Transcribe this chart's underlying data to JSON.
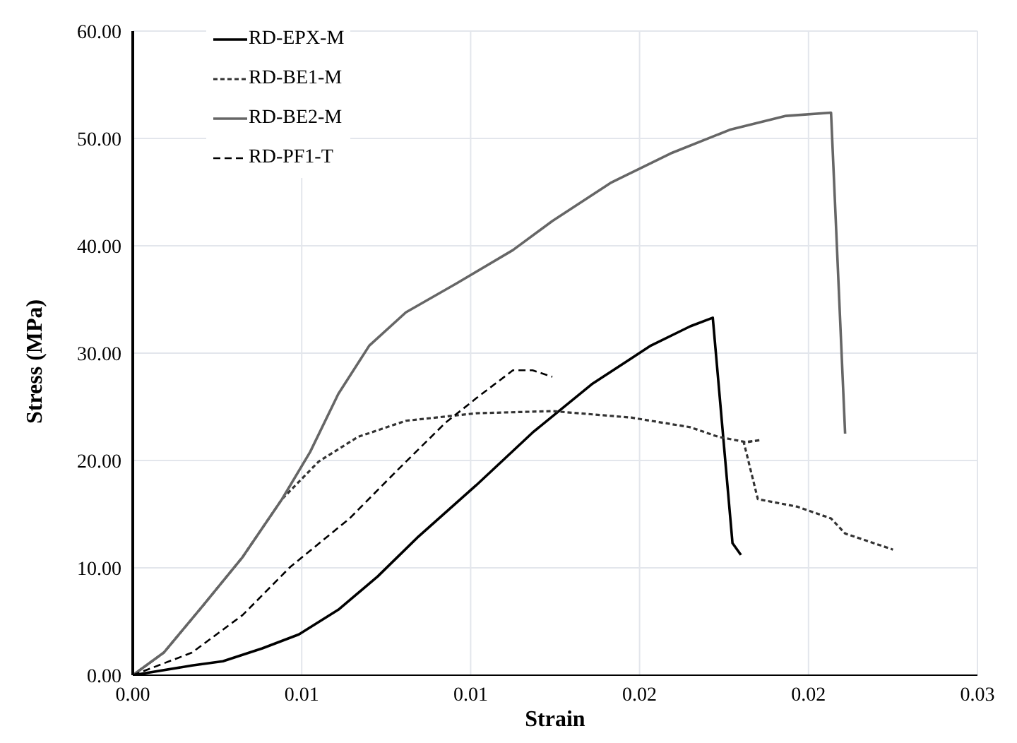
{
  "chart_data": {
    "type": "line",
    "xlabel": "Strain",
    "ylabel": "Stress (MPa)",
    "xlim": [
      0,
      0.03
    ],
    "xticks": [
      {
        "value": 0,
        "label": "0.00"
      },
      {
        "value": 0.006,
        "label": "0.01"
      },
      {
        "value": 0.012,
        "label": "0.01"
      },
      {
        "value": 0.018,
        "label": "0.02"
      },
      {
        "value": 0.024,
        "label": "0.02"
      },
      {
        "value": 0.03,
        "label": "0.03"
      }
    ],
    "ylim": [
      0,
      60
    ],
    "yticks": [
      {
        "value": 0,
        "label": "0.00"
      },
      {
        "value": 10,
        "label": "10.00"
      },
      {
        "value": 20,
        "label": "20.00"
      },
      {
        "value": 30,
        "label": "30.00"
      },
      {
        "value": 40,
        "label": "40.00"
      },
      {
        "value": 50,
        "label": "50.00"
      },
      {
        "value": 60,
        "label": "60.00"
      }
    ],
    "grid": true,
    "legend": "top left",
    "marker": "none",
    "series": [
      {
        "name": "RD-EPX-M",
        "color": "#000000",
        "line_style": "solid",
        "x": [
          0,
          0.0021,
          0.0032,
          0.0046,
          0.0059,
          0.0073,
          0.0087,
          0.0101,
          0.0122,
          0.0142,
          0.0163,
          0.0184,
          0.0198,
          0.0206,
          0.0213,
          0.0216
        ],
        "values": [
          0,
          0.9,
          1.3,
          2.5,
          3.8,
          6.1,
          9.2,
          12.8,
          17.7,
          22.6,
          27.1,
          30.7,
          32.5,
          33.3,
          12.3,
          11.2
        ]
      },
      {
        "name": "RD-BE1-M",
        "color": "#333333",
        "line_style": "dotted",
        "x": [
          0,
          0.0011,
          0.0025,
          0.0039,
          0.0053,
          0.0066,
          0.008,
          0.0097,
          0.0122,
          0.0149,
          0.0177,
          0.0198,
          0.0208,
          0.0218,
          0.0223,
          0.0217,
          0.0222,
          0.0236,
          0.0248,
          0.0253,
          0.027
        ],
        "values": [
          0,
          2.1,
          6.5,
          11,
          16.4,
          19.9,
          22.2,
          23.7,
          24.4,
          24.6,
          24,
          23.1,
          22.2,
          21.7,
          21.9,
          21.7,
          16.4,
          15.7,
          14.6,
          13.2,
          11.7
        ]
      },
      {
        "name": "RD-BE2-M",
        "color": "#666666",
        "line_style": "solid",
        "x": [
          0,
          0.0011,
          0.0025,
          0.0039,
          0.0053,
          0.0063,
          0.0073,
          0.0084,
          0.0097,
          0.0115,
          0.0135,
          0.0149,
          0.017,
          0.0191,
          0.0212,
          0.0232,
          0.0248,
          0.0253
        ],
        "values": [
          0,
          2.1,
          6.5,
          11,
          16.4,
          20.8,
          26.2,
          30.7,
          33.8,
          36.5,
          39.6,
          42.3,
          45.9,
          48.6,
          50.8,
          52.1,
          52.4,
          22.5
        ]
      },
      {
        "name": "RD-PF1-T",
        "color": "#000000",
        "line_style": "dashed",
        "x": [
          0,
          0.0021,
          0.0039,
          0.0056,
          0.0077,
          0.0094,
          0.0111,
          0.0122,
          0.0135,
          0.0142,
          0.0149
        ],
        "values": [
          0,
          2.1,
          5.6,
          10.1,
          14.6,
          19.1,
          23.5,
          25.8,
          28.4,
          28.4,
          27.8
        ]
      }
    ]
  }
}
